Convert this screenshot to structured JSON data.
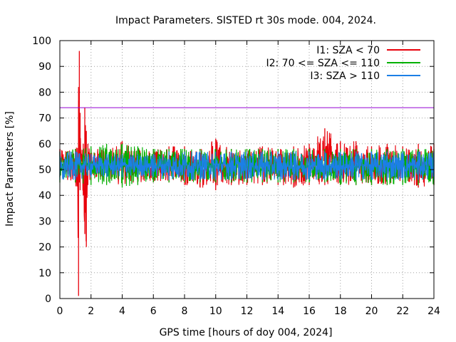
{
  "chart_data": {
    "type": "line",
    "title": "Impact Parameters. SISTED rt 30s mode. 004, 2024.",
    "xlabel": "GPS time [hours of doy 004, 2024]",
    "ylabel": "Impact Parameters [%]",
    "xlim": [
      0,
      24
    ],
    "ylim": [
      0,
      100
    ],
    "x_ticks": [
      0,
      2,
      4,
      6,
      8,
      10,
      12,
      14,
      16,
      18,
      20,
      22,
      24
    ],
    "y_ticks": [
      0,
      10,
      20,
      30,
      40,
      50,
      60,
      70,
      80,
      90,
      100
    ],
    "grid": true,
    "legend_position": "top-right",
    "reference_line": {
      "y": 74,
      "color": "#9400d3"
    },
    "series": [
      {
        "name": "I1: SZA < 70",
        "color": "#e8000b",
        "x": [
          0,
          0.5,
          1.0,
          1.2,
          1.25,
          1.3,
          1.5,
          1.6,
          1.7,
          1.8,
          2,
          3,
          4,
          5,
          6,
          7,
          8,
          9,
          10,
          11,
          12,
          13,
          14,
          15,
          16,
          17,
          18,
          19,
          20,
          21,
          22,
          23,
          24
        ],
        "min": [
          47,
          46,
          45,
          1,
          45,
          42,
          40,
          25,
          20,
          44,
          46,
          45,
          44,
          45,
          45,
          45,
          44,
          43,
          42,
          44,
          44,
          44,
          44,
          43,
          44,
          44,
          44,
          44,
          44,
          44,
          45,
          43,
          44
        ],
        "max": [
          58,
          57,
          58,
          82,
          96,
          72,
          60,
          74,
          65,
          60,
          58,
          58,
          61,
          58,
          58,
          59,
          59,
          58,
          62,
          58,
          58,
          59,
          58,
          59,
          60,
          66,
          61,
          61,
          59,
          60,
          59,
          60,
          60
        ]
      },
      {
        "name": "I2: 70 <= SZA <= 110",
        "color": "#00b000",
        "x": [
          0,
          1,
          2,
          3,
          4,
          5,
          6,
          7,
          8,
          9,
          10,
          11,
          12,
          13,
          14,
          15,
          16,
          17,
          18,
          19,
          20,
          21,
          22,
          23,
          24
        ],
        "min": [
          45,
          45,
          44,
          44,
          43,
          44,
          45,
          45,
          45,
          45,
          45,
          45,
          45,
          45,
          45,
          45,
          45,
          45,
          44,
          44,
          44,
          44,
          44,
          44,
          44
        ],
        "max": [
          57,
          58,
          59,
          60,
          60,
          59,
          58,
          58,
          58,
          58,
          58,
          58,
          58,
          58,
          58,
          58,
          58,
          58,
          58,
          58,
          58,
          58,
          58,
          58,
          58
        ]
      },
      {
        "name": "I3: SZA > 110",
        "color": "#1c7fe6",
        "x": [
          0,
          1,
          2,
          3,
          4,
          5,
          6,
          7,
          8,
          9,
          10,
          11,
          12,
          13,
          14,
          15,
          16,
          17,
          18,
          19,
          20,
          21,
          22,
          23,
          24
        ],
        "min": [
          46,
          46,
          47,
          47,
          47,
          47,
          47,
          46,
          46,
          46,
          46,
          46,
          46,
          46,
          46,
          46,
          46,
          46,
          46,
          46,
          46,
          46,
          46,
          46,
          46
        ],
        "max": [
          57,
          57,
          56,
          56,
          56,
          56,
          56,
          57,
          57,
          57,
          57,
          57,
          57,
          57,
          57,
          57,
          57,
          57,
          57,
          57,
          57,
          57,
          57,
          57,
          57
        ]
      }
    ]
  }
}
